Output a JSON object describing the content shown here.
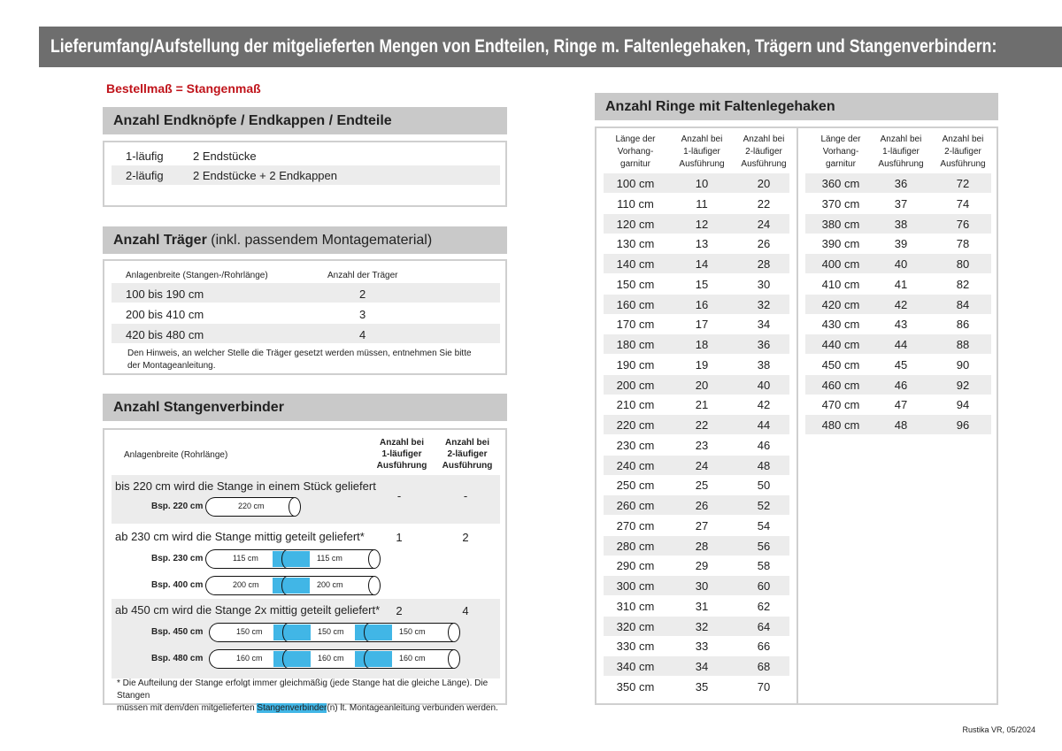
{
  "header": {
    "title": "Lieferumfang/Aufstellung der mitgelieferten Mengen von Endteilen, Ringe m. Faltenlegehaken, Trägern und Stangenverbindern:"
  },
  "note_red": "Bestellmaß = Stangenmaß",
  "accent_color": "#c0141b",
  "connector_color": "#41b6e6",
  "endteile": {
    "title": "Anzahl Endknöpfe / Endkappen / Endteile",
    "rows": [
      [
        "1-läufig",
        "2 Endstücke"
      ],
      [
        "2-läufig",
        "2 Endstücke + 2 Endkappen"
      ]
    ]
  },
  "traeger": {
    "title_bold": "Anzahl Träger",
    "title_rest": " (inkl. passendem Montagematerial)",
    "col1": "Anlagenbreite (Stangen-/Rohrlänge)",
    "col2": "Anzahl der Träger",
    "rows": [
      [
        "100 bis 190 cm",
        "2"
      ],
      [
        "200 bis 410 cm",
        "3"
      ],
      [
        "420 bis 480 cm",
        "4"
      ]
    ],
    "note1": "Den Hinweis, an welcher Stelle die Träger gesetzt werden müssen, entnehmen Sie bitte",
    "note2": "der Montageanleitung."
  },
  "verbinder": {
    "title": "Anzahl Stangenverbinder",
    "col1": "Anlagenbreite (Rohrlänge)",
    "col2": [
      "Anzahl bei",
      "1-läufiger",
      "Ausführung"
    ],
    "col3": [
      "Anzahl bei",
      "2-läufiger",
      "Ausführung"
    ],
    "groups": [
      {
        "text": "bis 220 cm wird die Stange in einem Stück geliefert",
        "v1": "-",
        "v2": "-",
        "examples": [
          {
            "label": "Bsp. 220 cm",
            "parts": [
              "220 cm"
            ]
          }
        ]
      },
      {
        "text": "ab 230 cm wird die Stange mittig geteilt geliefert*",
        "v1": "1",
        "v2": "2",
        "examples": [
          {
            "label": "Bsp. 230 cm",
            "parts": [
              "115 cm",
              "115 cm"
            ]
          },
          {
            "label": "Bsp. 400 cm",
            "parts": [
              "200 cm",
              "200 cm"
            ]
          }
        ]
      },
      {
        "text": "ab 450 cm wird die Stange 2x mittig geteilt geliefert*",
        "v1": "2",
        "v2": "4",
        "examples": [
          {
            "label": "Bsp. 450 cm",
            "parts": [
              "150 cm",
              "150 cm",
              "150 cm"
            ]
          },
          {
            "label": "Bsp. 480 cm",
            "parts": [
              "160 cm",
              "160 cm",
              "160 cm"
            ]
          }
        ]
      }
    ],
    "foot1": "* Die Aufteilung der Stange erfolgt immer gleichmäßig (jede Stange hat die gleiche Länge). Die Stangen",
    "foot2a": "müssen mit dem/den mitgelieferten ",
    "foot2b": "Stangenverbinder",
    "foot2c": "(n) lt. Montageanleitung verbunden werden."
  },
  "ringe": {
    "title": "Anzahl Ringe mit Faltenlegehaken",
    "headers": [
      [
        "Länge der",
        "Vorhang-",
        "garnitur"
      ],
      [
        "Anzahl bei",
        "1-läufiger",
        "Ausführung"
      ],
      [
        "Anzahl bei",
        "2-läufiger",
        "Ausführung"
      ]
    ],
    "left": [
      [
        "100 cm",
        "10",
        "20"
      ],
      [
        "110 cm",
        "11",
        "22"
      ],
      [
        "120 cm",
        "12",
        "24"
      ],
      [
        "130 cm",
        "13",
        "26"
      ],
      [
        "140 cm",
        "14",
        "28"
      ],
      [
        "150 cm",
        "15",
        "30"
      ],
      [
        "160 cm",
        "16",
        "32"
      ],
      [
        "170 cm",
        "17",
        "34"
      ],
      [
        "180 cm",
        "18",
        "36"
      ],
      [
        "190 cm",
        "19",
        "38"
      ],
      [
        "200 cm",
        "20",
        "40"
      ],
      [
        "210 cm",
        "21",
        "42"
      ],
      [
        "220 cm",
        "22",
        "44"
      ],
      [
        "230 cm",
        "23",
        "46"
      ],
      [
        "240 cm",
        "24",
        "48"
      ],
      [
        "250 cm",
        "25",
        "50"
      ],
      [
        "260 cm",
        "26",
        "52"
      ],
      [
        "270 cm",
        "27",
        "54"
      ],
      [
        "280 cm",
        "28",
        "56"
      ],
      [
        "290 cm",
        "29",
        "58"
      ],
      [
        "300 cm",
        "30",
        "60"
      ],
      [
        "310 cm",
        "31",
        "62"
      ],
      [
        "320 cm",
        "32",
        "64"
      ],
      [
        "330 cm",
        "33",
        "66"
      ],
      [
        "340 cm",
        "34",
        "68"
      ],
      [
        "350 cm",
        "35",
        "70"
      ]
    ],
    "right": [
      [
        "360 cm",
        "36",
        "72"
      ],
      [
        "370 cm",
        "37",
        "74"
      ],
      [
        "380 cm",
        "38",
        "76"
      ],
      [
        "390 cm",
        "39",
        "78"
      ],
      [
        "400 cm",
        "40",
        "80"
      ],
      [
        "410 cm",
        "41",
        "82"
      ],
      [
        "420 cm",
        "42",
        "84"
      ],
      [
        "430 cm",
        "43",
        "86"
      ],
      [
        "440 cm",
        "44",
        "88"
      ],
      [
        "450 cm",
        "45",
        "90"
      ],
      [
        "460 cm",
        "46",
        "92"
      ],
      [
        "470 cm",
        "47",
        "94"
      ],
      [
        "480 cm",
        "48",
        "96"
      ]
    ]
  },
  "footer": "Rustika VR, 05/2024"
}
